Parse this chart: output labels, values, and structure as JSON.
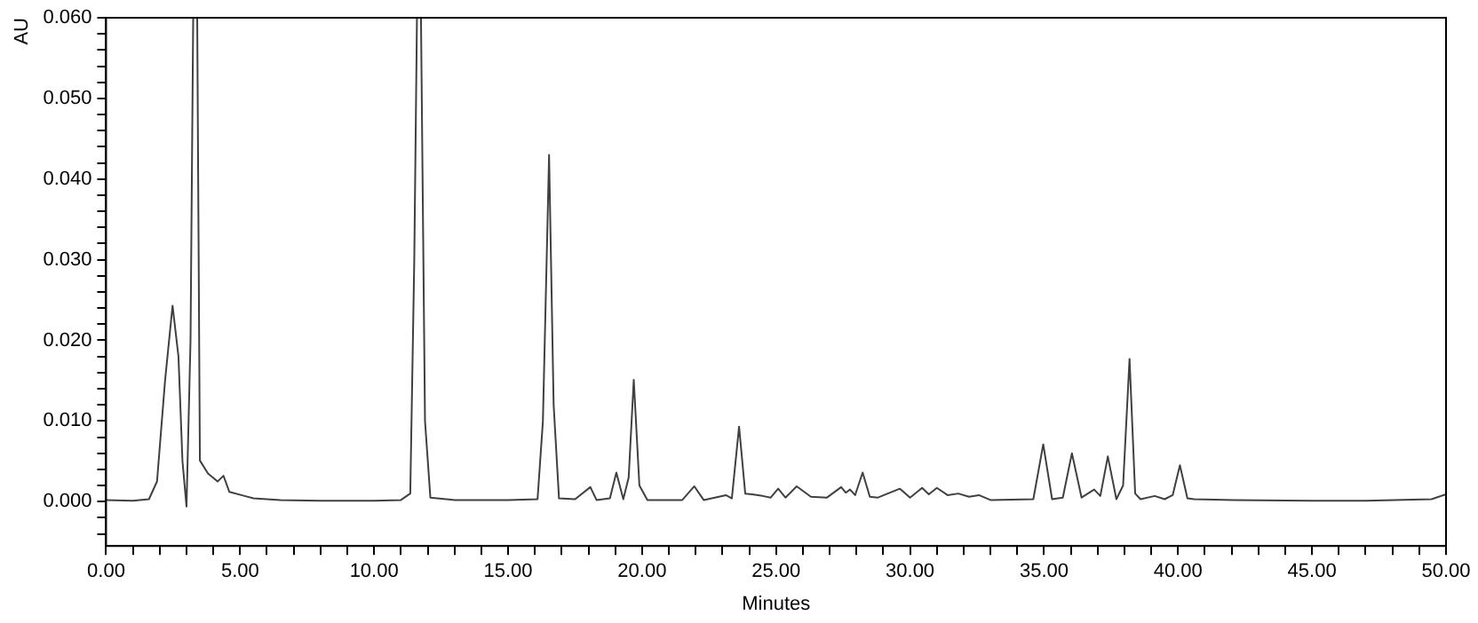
{
  "chart_data": {
    "type": "line",
    "xlabel": "Minutes",
    "ylabel": "AU",
    "marker": "none",
    "grid": false,
    "legend": false,
    "line_style": "solid",
    "xlim": [
      0,
      50
    ],
    "ylim": [
      -0.0055,
      0.06
    ],
    "xticks": [
      {
        "value": 0,
        "label": "0.00"
      },
      {
        "value": 1,
        "label": null
      },
      {
        "value": 2,
        "label": null
      },
      {
        "value": 3,
        "label": null
      },
      {
        "value": 4,
        "label": null
      },
      {
        "value": 5,
        "label": "5.00"
      },
      {
        "value": 6,
        "label": null
      },
      {
        "value": 7,
        "label": null
      },
      {
        "value": 8,
        "label": null
      },
      {
        "value": 9,
        "label": null
      },
      {
        "value": 10,
        "label": "10.00"
      },
      {
        "value": 11,
        "label": null
      },
      {
        "value": 12,
        "label": null
      },
      {
        "value": 13,
        "label": null
      },
      {
        "value": 14,
        "label": null
      },
      {
        "value": 15,
        "label": "15.00"
      },
      {
        "value": 16,
        "label": null
      },
      {
        "value": 17,
        "label": null
      },
      {
        "value": 18,
        "label": null
      },
      {
        "value": 19,
        "label": null
      },
      {
        "value": 20,
        "label": "20.00"
      },
      {
        "value": 21,
        "label": null
      },
      {
        "value": 22,
        "label": null
      },
      {
        "value": 23,
        "label": null
      },
      {
        "value": 24,
        "label": null
      },
      {
        "value": 25,
        "label": "25.00"
      },
      {
        "value": 26,
        "label": null
      },
      {
        "value": 27,
        "label": null
      },
      {
        "value": 28,
        "label": null
      },
      {
        "value": 29,
        "label": null
      },
      {
        "value": 30,
        "label": "30.00"
      },
      {
        "value": 31,
        "label": null
      },
      {
        "value": 32,
        "label": null
      },
      {
        "value": 33,
        "label": null
      },
      {
        "value": 34,
        "label": null
      },
      {
        "value": 35,
        "label": "35.00"
      },
      {
        "value": 36,
        "label": null
      },
      {
        "value": 37,
        "label": null
      },
      {
        "value": 38,
        "label": null
      },
      {
        "value": 39,
        "label": null
      },
      {
        "value": 40,
        "label": "40.00"
      },
      {
        "value": 41,
        "label": null
      },
      {
        "value": 42,
        "label": null
      },
      {
        "value": 43,
        "label": null
      },
      {
        "value": 44,
        "label": null
      },
      {
        "value": 45,
        "label": "45.00"
      },
      {
        "value": 46,
        "label": null
      },
      {
        "value": 47,
        "label": null
      },
      {
        "value": 48,
        "label": null
      },
      {
        "value": 49,
        "label": null
      },
      {
        "value": 50,
        "label": "50.00"
      }
    ],
    "yticks": [
      {
        "value": -0.004,
        "label": null
      },
      {
        "value": -0.002,
        "label": null
      },
      {
        "value": 0,
        "label": "0.000"
      },
      {
        "value": 0.002,
        "label": null
      },
      {
        "value": 0.004,
        "label": null
      },
      {
        "value": 0.006,
        "label": null
      },
      {
        "value": 0.008,
        "label": null
      },
      {
        "value": 0.01,
        "label": "0.010"
      },
      {
        "value": 0.012,
        "label": null
      },
      {
        "value": 0.014,
        "label": null
      },
      {
        "value": 0.016,
        "label": null
      },
      {
        "value": 0.018,
        "label": null
      },
      {
        "value": 0.02,
        "label": "0.020"
      },
      {
        "value": 0.022,
        "label": null
      },
      {
        "value": 0.024,
        "label": null
      },
      {
        "value": 0.026,
        "label": null
      },
      {
        "value": 0.028,
        "label": null
      },
      {
        "value": 0.03,
        "label": "0.030"
      },
      {
        "value": 0.032,
        "label": null
      },
      {
        "value": 0.034,
        "label": null
      },
      {
        "value": 0.036,
        "label": null
      },
      {
        "value": 0.038,
        "label": null
      },
      {
        "value": 0.04,
        "label": "0.040"
      },
      {
        "value": 0.042,
        "label": null
      },
      {
        "value": 0.044,
        "label": null
      },
      {
        "value": 0.046,
        "label": null
      },
      {
        "value": 0.048,
        "label": null
      },
      {
        "value": 0.05,
        "label": "0.050"
      },
      {
        "value": 0.052,
        "label": null
      },
      {
        "value": 0.054,
        "label": null
      },
      {
        "value": 0.056,
        "label": null
      },
      {
        "value": 0.058,
        "label": null
      },
      {
        "value": 0.06,
        "label": "0.060"
      }
    ],
    "series": [
      {
        "color": "#404040",
        "x": [
          0,
          1.0,
          1.6,
          1.9,
          2.2,
          2.48,
          2.7,
          2.85,
          3.0,
          3.15,
          3.25,
          3.4,
          3.5,
          3.8,
          4.16,
          4.38,
          4.6,
          5.17,
          5.5,
          6.5,
          8.0,
          10.0,
          11.0,
          11.35,
          11.5,
          11.6,
          11.75,
          11.9,
          12.1,
          13.0,
          15.0,
          16.1,
          16.3,
          16.53,
          16.7,
          16.9,
          17.5,
          18.07,
          18.3,
          18.8,
          19.04,
          19.3,
          19.5,
          19.69,
          19.9,
          20.2,
          21.5,
          21.95,
          22.3,
          23.13,
          23.35,
          23.62,
          23.85,
          24.1,
          24.5,
          24.8,
          25.08,
          25.35,
          25.77,
          26.3,
          26.9,
          27.43,
          27.6,
          27.76,
          27.95,
          28.23,
          28.5,
          28.8,
          29.62,
          30.0,
          30.45,
          30.7,
          31.0,
          31.4,
          31.8,
          32.2,
          32.57,
          33.0,
          34.6,
          34.97,
          35.3,
          35.7,
          36.04,
          36.4,
          36.87,
          37.1,
          37.38,
          37.7,
          37.95,
          38.19,
          38.4,
          38.6,
          39.13,
          39.5,
          39.8,
          40.07,
          40.35,
          40.6,
          42.1,
          45.0,
          47.0,
          49.46,
          50.0
        ],
        "values": [
          0.0002,
          0.0001,
          0.0003,
          0.0025,
          0.015,
          0.0243,
          0.018,
          0.005,
          -0.0006,
          0.02,
          0.06,
          0.06,
          0.0051,
          0.0035,
          0.0025,
          0.0032,
          0.0012,
          0.0007,
          0.0004,
          0.0002,
          0.0001,
          0.0001,
          0.0002,
          0.001,
          0.03,
          0.06,
          0.06,
          0.01,
          0.0005,
          0.0002,
          0.0002,
          0.0003,
          0.01,
          0.043,
          0.012,
          0.0004,
          0.0003,
          0.0018,
          0.0002,
          0.0004,
          0.0036,
          0.0003,
          0.003,
          0.0151,
          0.002,
          0.0002,
          0.0002,
          0.0019,
          0.0002,
          0.0008,
          0.0004,
          0.0093,
          0.001,
          0.0009,
          0.0007,
          0.0005,
          0.0016,
          0.0005,
          0.0019,
          0.0006,
          0.0005,
          0.0018,
          0.0011,
          0.0015,
          0.0008,
          0.0036,
          0.0006,
          0.0005,
          0.0016,
          0.0005,
          0.0017,
          0.0009,
          0.0017,
          0.0008,
          0.001,
          0.0006,
          0.0008,
          0.0002,
          0.0003,
          0.0071,
          0.0003,
          0.0005,
          0.006,
          0.0005,
          0.0015,
          0.0007,
          0.0056,
          0.0003,
          0.002,
          0.0177,
          0.001,
          0.0003,
          0.0007,
          0.0003,
          0.0008,
          0.0045,
          0.0004,
          0.0003,
          0.0002,
          0.0001,
          0.0001,
          0.0003,
          0.0009
        ]
      }
    ]
  }
}
